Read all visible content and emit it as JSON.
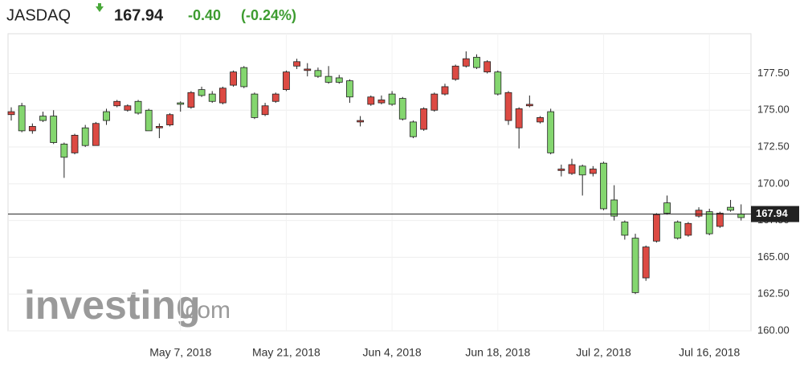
{
  "header": {
    "symbol": "JASDAQ",
    "price": "167.94",
    "change": "-0.40",
    "change_percent": "(-0.24%)"
  },
  "brand": {
    "name": "investing",
    "suffix": ".com"
  },
  "chart_data": {
    "type": "candlestick",
    "categories": [
      null,
      null,
      null,
      null,
      null,
      null,
      null,
      null,
      null,
      null,
      null,
      null,
      null,
      null,
      null,
      null,
      "May 7, 2018",
      null,
      null,
      null,
      null,
      null,
      null,
      null,
      null,
      null,
      "May 21, 2018",
      null,
      null,
      null,
      null,
      null,
      null,
      null,
      null,
      null,
      "Jun 4, 2018",
      null,
      null,
      null,
      null,
      null,
      null,
      null,
      null,
      null,
      "Jun 18, 2018",
      null,
      null,
      null,
      null,
      null,
      null,
      null,
      null,
      null,
      "Jul 2, 2018",
      null,
      null,
      null,
      null,
      null,
      null,
      null,
      null,
      null,
      "Jul 16, 2018",
      null,
      null,
      null
    ],
    "open": [
      174.9,
      173.6,
      173.9,
      174.3,
      172.8,
      171.8,
      173.3,
      172.6,
      174.1,
      174.3,
      175.6,
      175.3,
      174.8,
      173.6,
      173.9,
      174.7,
      175.4,
      176.2,
      176.0,
      175.6,
      176.5,
      177.6,
      176.6,
      174.5,
      175.3,
      176.1,
      177.6,
      178.3,
      177.8,
      177.3,
      176.9,
      176.9,
      175.9,
      174.3,
      175.9,
      175.7,
      175.4,
      174.4,
      173.2,
      175.1,
      176.1,
      176.6,
      178.0,
      178.5,
      177.9,
      178.3,
      176.1,
      176.2,
      175.1,
      175.4,
      174.5,
      172.1,
      171.0,
      171.3,
      170.6,
      171.0,
      168.3,
      167.8,
      166.5,
      162.6,
      165.7,
      167.9,
      168.0,
      166.3,
      167.3,
      168.2,
      166.6,
      168.0,
      168.2,
      167.7
    ],
    "high": [
      175.2,
      175.5,
      174.1,
      174.9,
      175.0,
      172.8,
      173.4,
      174.0,
      174.2,
      175.1,
      175.7,
      175.4,
      175.7,
      175.1,
      174.1,
      174.8,
      175.6,
      176.3,
      176.6,
      176.3,
      176.6,
      177.7,
      178.0,
      176.2,
      175.5,
      176.2,
      177.7,
      178.5,
      178.2,
      177.9,
      178.0,
      177.4,
      177.1,
      174.6,
      176.0,
      176.0,
      176.3,
      175.9,
      174.3,
      175.2,
      176.2,
      176.8,
      178.1,
      179.0,
      178.8,
      178.4,
      177.7,
      176.3,
      175.2,
      176.0,
      174.6,
      175.1,
      171.3,
      171.7,
      171.3,
      171.2,
      171.5,
      169.9,
      167.5,
      166.6,
      165.8,
      168.0,
      169.2,
      167.5,
      167.4,
      168.4,
      168.3,
      168.1,
      168.9,
      168.6
    ],
    "low": [
      174.3,
      173.5,
      173.4,
      174.2,
      172.7,
      170.4,
      172.0,
      172.5,
      172.6,
      174.0,
      175.2,
      174.9,
      174.7,
      173.6,
      173.1,
      173.9,
      174.9,
      175.1,
      175.9,
      175.5,
      175.4,
      176.6,
      176.5,
      174.4,
      174.6,
      175.5,
      176.3,
      177.8,
      177.3,
      177.2,
      176.8,
      176.8,
      175.5,
      173.9,
      175.3,
      175.4,
      175.3,
      174.3,
      173.1,
      173.6,
      174.9,
      176.0,
      177.0,
      177.9,
      177.8,
      177.5,
      176.0,
      174.0,
      172.4,
      175.2,
      174.1,
      172.0,
      170.5,
      170.6,
      169.2,
      170.5,
      168.2,
      167.5,
      166.2,
      162.5,
      163.4,
      166.0,
      167.9,
      166.2,
      166.4,
      167.7,
      166.5,
      167.0,
      168.1,
      167.5
    ],
    "close": [
      174.7,
      175.3,
      173.6,
      174.6,
      174.6,
      172.7,
      172.1,
      173.8,
      172.6,
      174.9,
      175.3,
      175.0,
      175.6,
      175.0,
      173.8,
      174.0,
      175.5,
      175.2,
      176.4,
      176.1,
      175.5,
      176.7,
      177.9,
      176.1,
      174.7,
      175.6,
      176.4,
      178.0,
      177.7,
      177.7,
      177.3,
      177.2,
      177.0,
      174.2,
      175.4,
      175.5,
      176.1,
      175.8,
      174.2,
      173.7,
      175.0,
      176.1,
      177.1,
      178.0,
      178.6,
      177.6,
      177.6,
      174.3,
      173.8,
      175.3,
      174.2,
      174.9,
      170.9,
      170.7,
      171.2,
      170.7,
      171.4,
      168.9,
      167.4,
      166.3,
      163.6,
      166.1,
      168.7,
      167.4,
      166.5,
      167.8,
      168.1,
      167.1,
      168.4,
      167.94
    ],
    "up_color": "#84d66f",
    "down_color": "#dc4a43",
    "ylim": [
      160,
      180.2
    ],
    "yticks": [
      {
        "value": 160,
        "label": "160.00"
      },
      {
        "value": 162.5,
        "label": "162.50"
      },
      {
        "value": 165,
        "label": "165.00"
      },
      {
        "value": 167.5,
        "label": "167.50"
      },
      {
        "value": 170,
        "label": "170.00"
      },
      {
        "value": 172.5,
        "label": "172.50"
      },
      {
        "value": 175,
        "label": "175.00"
      },
      {
        "value": 177.5,
        "label": "177.50"
      }
    ],
    "grid": true
  }
}
